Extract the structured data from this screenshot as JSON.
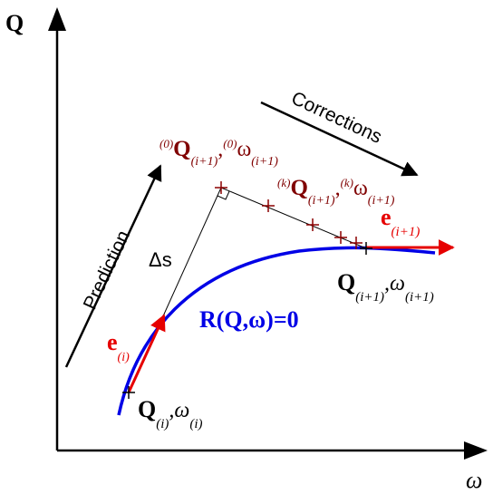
{
  "axes": {
    "y_label": "Q",
    "x_label": "ω"
  },
  "annotations": {
    "prediction": "Prediction",
    "corrections": "Corrections",
    "delta_s": "Δs",
    "curve_equation": "R(Q,ω)=0"
  },
  "points": {
    "start": {
      "Q": "Q",
      "Q_sub": "(i)",
      "sep": ",",
      "omega": "ω",
      "omega_sub": "(i)"
    },
    "predicted": {
      "pre": "(0)",
      "Q": "Q",
      "Q_sub": "(i+1)",
      "sep": ",",
      "pre2": "(0)",
      "omega": "ω",
      "omega_sub": "(i+1)"
    },
    "iterate": {
      "pre": "(k)",
      "Q": "Q",
      "Q_sub": "(i+1)",
      "sep": ",",
      "pre2": "(k)",
      "omega": "ω",
      "omega_sub": "(i+1)"
    },
    "converged": {
      "Q": "Q",
      "Q_sub": "(i+1)",
      "sep": ",",
      "omega": "ω",
      "omega_sub": "(i+1)"
    }
  },
  "vectors": {
    "tangent_i": {
      "e": "e",
      "sub": "(i)"
    },
    "tangent_i1": {
      "e": "e",
      "sub": "(i+1)"
    }
  },
  "colors": {
    "curve": "#0000e6",
    "vector": "#e60000",
    "label_dark_red": "#800000",
    "axis": "#000000"
  }
}
